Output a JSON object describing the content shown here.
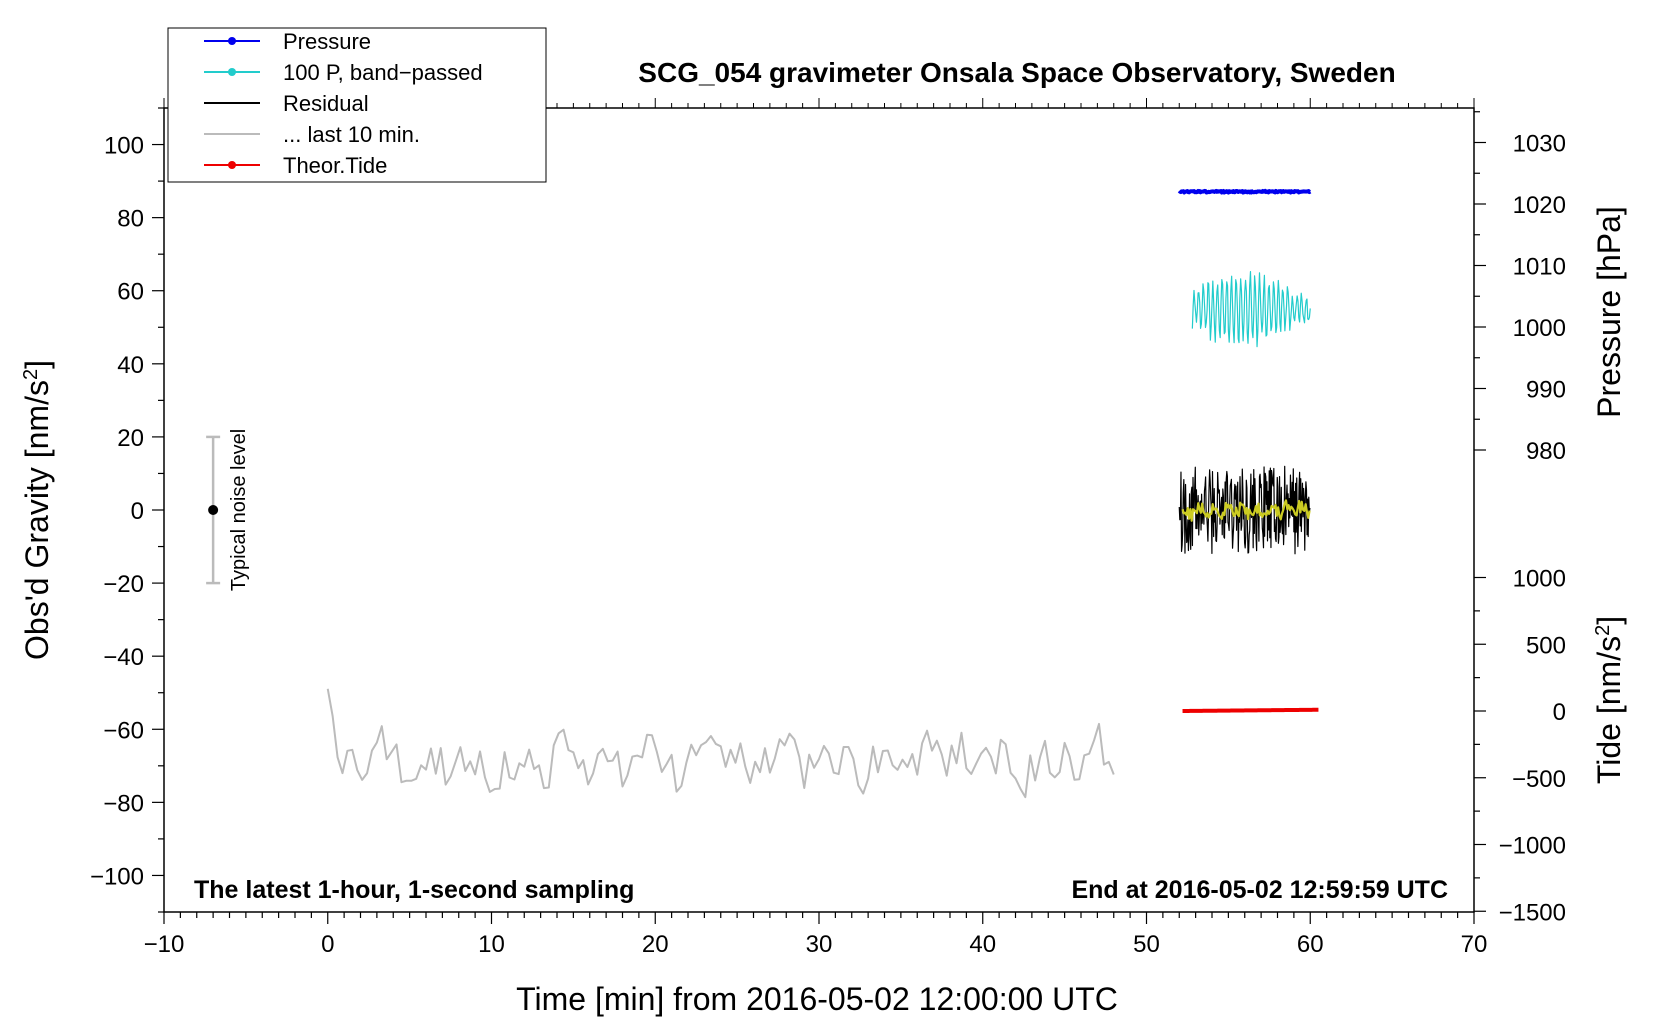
{
  "chart_data": {
    "type": "line",
    "title": "SCG_054 gravimeter Onsala Space Observatory, Sweden",
    "note_left": "The latest 1-hour, 1-second sampling",
    "note_right": "End at 2016-05-02 12:59:59 UTC",
    "xlabel": "Time [min] from 2016-05-02 12:00:00 UTC",
    "xlim": [
      -10,
      70
    ],
    "xticks": [
      "−10",
      "0",
      "10",
      "20",
      "30",
      "40",
      "50",
      "60",
      "70"
    ],
    "xtick_values": [
      -10,
      0,
      10,
      20,
      30,
      40,
      50,
      60,
      70
    ],
    "ylabel_left": "Obs'd Gravity [nm/s",
    "ylabel_left_sup": "2",
    "ylabel_left_end": "]",
    "ylim_left": [
      -110,
      110
    ],
    "yticks_left": [
      "100",
      "80",
      "60",
      "40",
      "20",
      "0",
      "−20",
      "−40",
      "−60",
      "−80",
      "−100"
    ],
    "ytick_values_left": [
      100,
      80,
      60,
      40,
      20,
      0,
      -20,
      -40,
      -60,
      -80,
      -100
    ],
    "ylabel_pressure": "Pressure [hPa]",
    "yticks_pressure": [
      "1030",
      "1020",
      "1010",
      "1000",
      "990",
      "980"
    ],
    "ytick_values_pressure": [
      1030,
      1020,
      1010,
      1000,
      990,
      980
    ],
    "ylabel_tide": "Tide [nm/s",
    "ylabel_tide_sup": "2",
    "ylabel_tide_end": "]",
    "yticks_tide": [
      "1000",
      "500",
      "0",
      "−500",
      "−1000",
      "−1500"
    ],
    "ytick_values_tide": [
      1000,
      500,
      0,
      -500,
      -1000,
      -1500
    ],
    "noise_label": "Typical noise level",
    "noise_bar": {
      "x": -7,
      "center": 0,
      "low": -20,
      "high": 20
    },
    "legend": [
      {
        "label": "Pressure",
        "color": "#0000ee",
        "marker": true
      },
      {
        "label": "100 P, band−passed",
        "color": "#22cccc",
        "marker": true
      },
      {
        "label": "Residual",
        "color": "#000000",
        "marker": false
      },
      {
        "label": "... last 10 min.",
        "color": "#bbbbbb",
        "marker": false
      },
      {
        "label": "Theor.Tide",
        "color": "#ee0000",
        "marker": true
      }
    ],
    "series": [
      {
        "name": "Pressure",
        "color": "#0000ee",
        "axis": "pressure",
        "x_range": [
          52,
          60
        ],
        "level": 1022
      },
      {
        "name": "100 P, band−passed",
        "color": "#22cccc",
        "axis": "gravity",
        "x_range": [
          52.8,
          60
        ],
        "center": 55,
        "amplitude": 7
      },
      {
        "name": "Residual",
        "color": "#000000",
        "axis": "gravity",
        "x_range": [
          52,
          60
        ],
        "center": 0,
        "amplitude": 10
      },
      {
        "name": "... last 10 min.",
        "color": "#bbbbbb",
        "axis": "gravity",
        "x_range": [
          0,
          48
        ],
        "center": -69,
        "amplitude": 9
      },
      {
        "name": "Theor.Tide",
        "color": "#ee0000",
        "axis": "tide",
        "x_range": [
          52.2,
          60.5
        ],
        "level": 0
      },
      {
        "name": "smoothed residual",
        "color": "#cccc22",
        "axis": "gravity",
        "x_range": [
          52.2,
          60
        ],
        "center": 0,
        "amplitude": 2
      }
    ],
    "colors": {
      "noise_bar": "#bbbbbb",
      "noise_dot": "#000000"
    }
  }
}
